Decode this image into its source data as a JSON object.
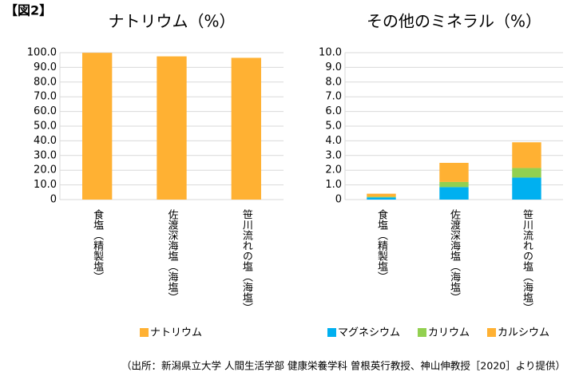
{
  "figure_label": "【図2】",
  "footnote": "（出所：新潟県立大学 人間生活学部 健康栄養学科 曽根英行教授、神山伸教授［2020］より提供）",
  "chart_data": [
    {
      "type": "bar",
      "title": "ナトリウム（%）",
      "categories": [
        "食塩（精製塩）",
        "佐渡深海塩（海塩）",
        "笹川流れの塩（海塩）"
      ],
      "series": [
        {
          "name": "ナトリウム",
          "color": "#ffb133",
          "values": [
            99.9,
            97.5,
            96.5
          ]
        }
      ],
      "ylim": [
        0,
        100
      ],
      "yticks": [
        0,
        {
          "value": 10,
          "label": "10.0"
        },
        {
          "value": 20,
          "label": "20.0"
        },
        {
          "value": 30,
          "label": "30.0"
        },
        {
          "value": 40,
          "label": "40.0"
        },
        {
          "value": 50,
          "label": "50.0"
        },
        {
          "value": 60,
          "label": "60.0"
        },
        {
          "value": 70,
          "label": "70.0"
        },
        {
          "value": 80,
          "label": "80.0"
        },
        {
          "value": 90,
          "label": "90.0"
        },
        {
          "value": 100,
          "label": "100.0"
        }
      ],
      "grid": true,
      "legend": "bottom"
    },
    {
      "type": "stacked_bar",
      "title": "その他のミネラル（%）",
      "categories": [
        "食塩（精製塩）",
        "佐渡深海塩（海塩）",
        "笹川流れの塩（海塩）"
      ],
      "series": [
        {
          "name": "マグネシウム",
          "color": "#00b0f0",
          "values": [
            0.15,
            0.85,
            1.5
          ]
        },
        {
          "name": "カリウム",
          "color": "#92d050",
          "values": [
            0.05,
            0.35,
            0.65
          ]
        },
        {
          "name": "カルシウム",
          "color": "#ffb133",
          "values": [
            0.2,
            1.3,
            1.75
          ]
        }
      ],
      "ylim": [
        0,
        10
      ],
      "yticks": [
        0,
        {
          "value": 1,
          "label": "1.0"
        },
        {
          "value": 2,
          "label": "2.0"
        },
        {
          "value": 3,
          "label": "3.0"
        },
        {
          "value": 4,
          "label": "4.0"
        },
        {
          "value": 5,
          "label": "5.0"
        },
        {
          "value": 6,
          "label": "6.0"
        },
        {
          "value": 7,
          "label": "7.0"
        },
        {
          "value": 8,
          "label": "8.0"
        },
        {
          "value": 9,
          "label": "9.0"
        },
        {
          "value": 10,
          "label": "10.0"
        }
      ],
      "grid": true,
      "legend": "bottom"
    }
  ]
}
